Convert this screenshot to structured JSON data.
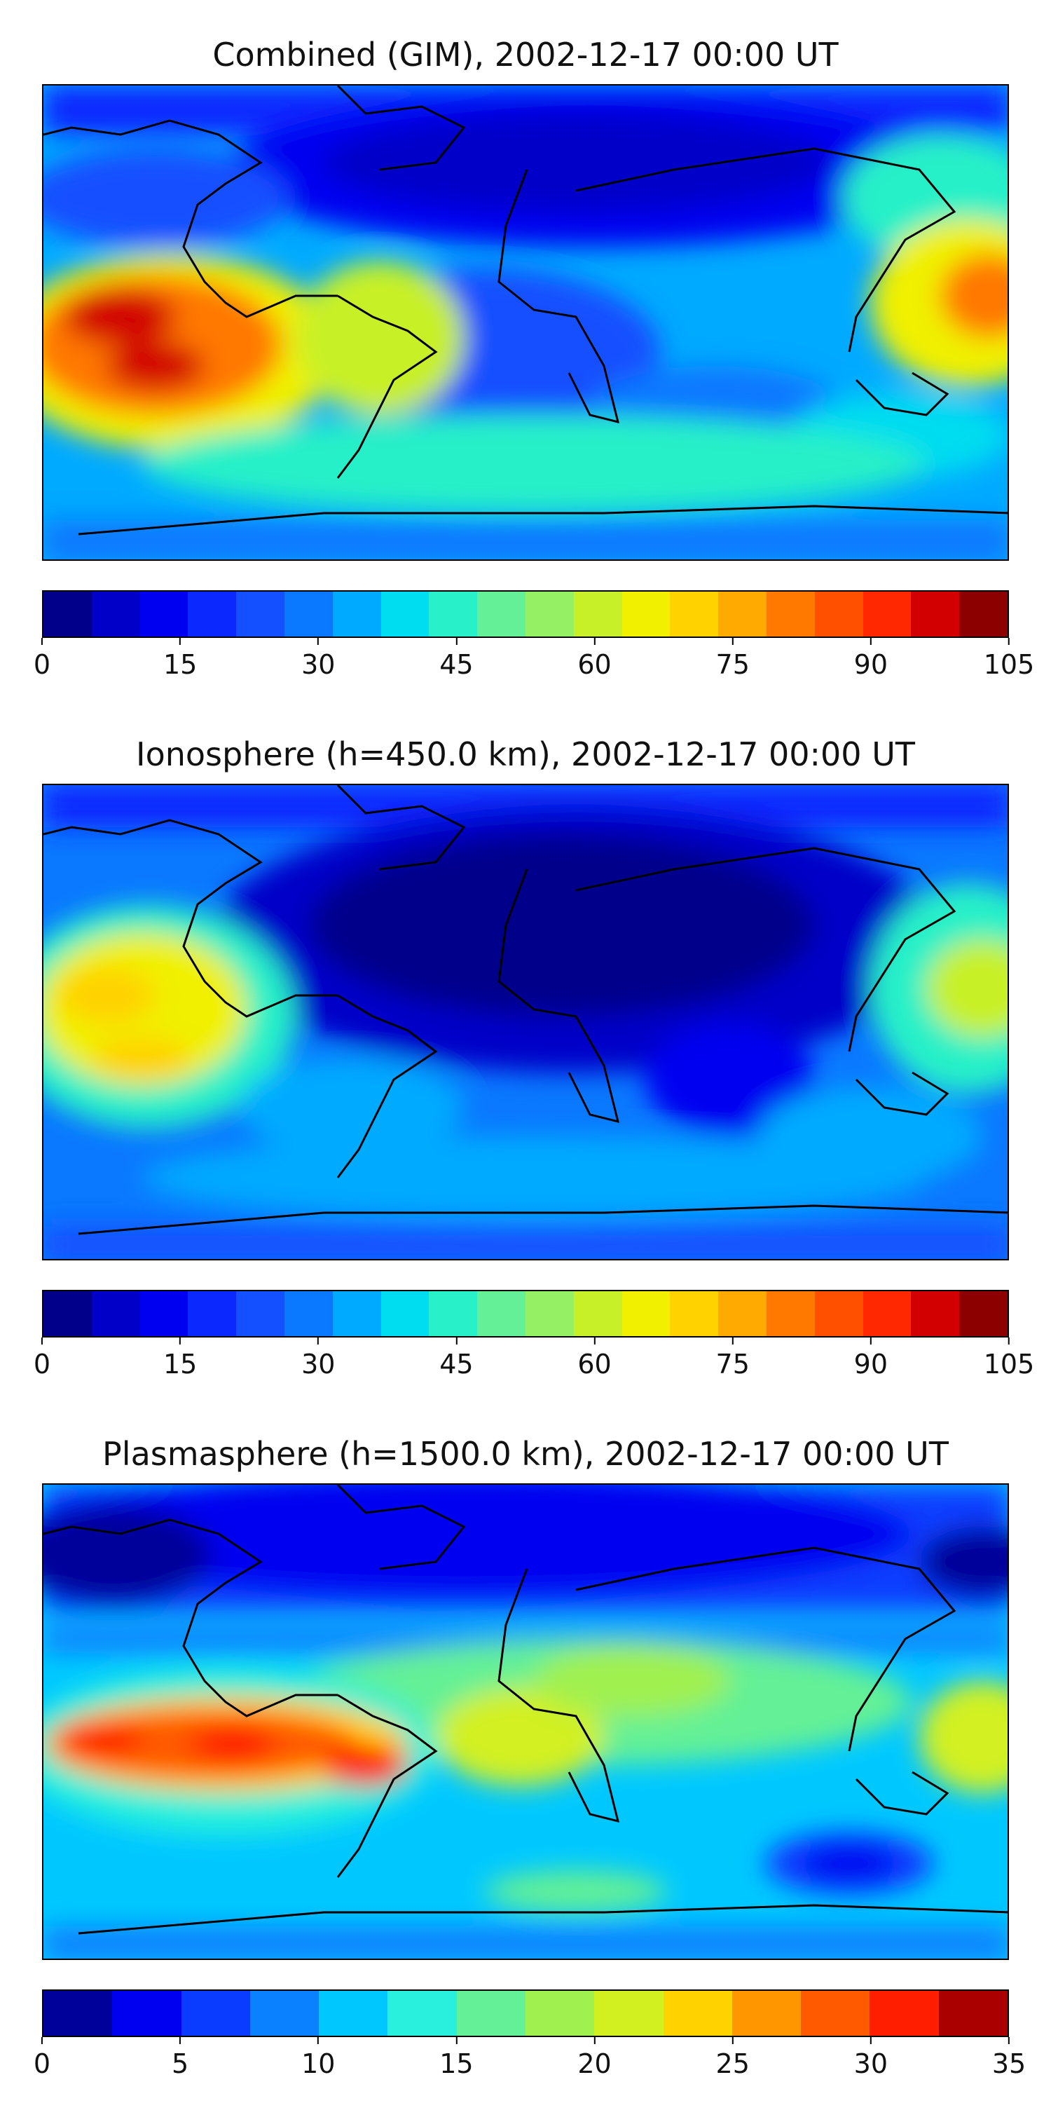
{
  "panels": [
    {
      "title": "Combined (GIM), 2002-12-17 00:00 UT",
      "colorbar": {
        "ticks": [
          "0",
          "15",
          "30",
          "45",
          "60",
          "75",
          "90",
          "105"
        ],
        "levels": [
          0,
          105
        ],
        "colors": [
          "#00008b",
          "#0000c8",
          "#0000f0",
          "#0a28ff",
          "#1450ff",
          "#0a78ff",
          "#00aaff",
          "#00dcf0",
          "#28f0c8",
          "#64f096",
          "#96f064",
          "#c8f028",
          "#f0f000",
          "#ffd200",
          "#ffaa00",
          "#ff7800",
          "#ff5000",
          "#ff2800",
          "#d20000",
          "#8c0000"
        ]
      }
    },
    {
      "title": "Ionosphere  (h=450.0 km), 2002-12-17 00:00 UT",
      "colorbar": {
        "ticks": [
          "0",
          "15",
          "30",
          "45",
          "60",
          "75",
          "90",
          "105"
        ],
        "levels": [
          0,
          105
        ],
        "colors": [
          "#00008b",
          "#0000c8",
          "#0000f0",
          "#0a28ff",
          "#1450ff",
          "#0a78ff",
          "#00aaff",
          "#00dcf0",
          "#28f0c8",
          "#64f096",
          "#96f064",
          "#c8f028",
          "#f0f000",
          "#ffd200",
          "#ffaa00",
          "#ff7800",
          "#ff5000",
          "#ff2800",
          "#d20000",
          "#8c0000"
        ]
      }
    },
    {
      "title": "Plasmasphere (h=1500.0 km), 2002-12-17 00:00 UT",
      "colorbar": {
        "ticks": [
          "0",
          "5",
          "10",
          "15",
          "20",
          "25",
          "30",
          "35"
        ],
        "levels": [
          0,
          35
        ],
        "colors": [
          "#00009a",
          "#0000f0",
          "#0a3cff",
          "#0a82ff",
          "#00c8ff",
          "#28f0dc",
          "#64f096",
          "#a0f050",
          "#d2f020",
          "#ffd200",
          "#ff9600",
          "#ff5a00",
          "#ff1e00",
          "#aa0000"
        ]
      }
    }
  ]
}
